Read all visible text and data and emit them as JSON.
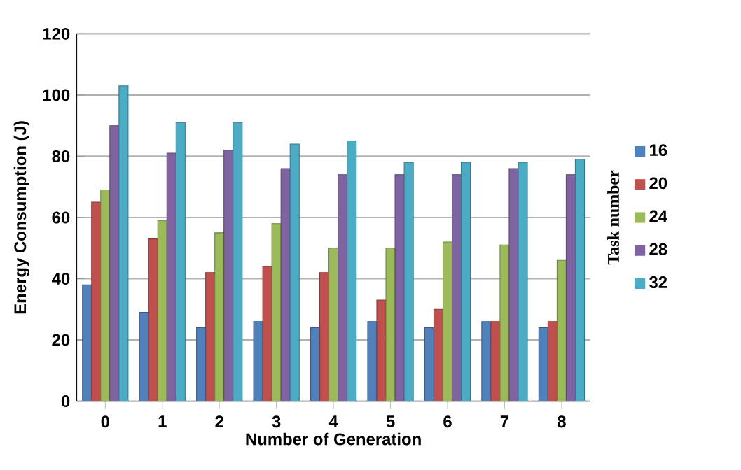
{
  "chart_data": {
    "type": "bar",
    "xlabel": "Number of Generation",
    "ylabel": "Energy Consumption  (J)",
    "legend_title": "Task number",
    "categories": [
      "0",
      "1",
      "2",
      "3",
      "4",
      "5",
      "6",
      "7",
      "8"
    ],
    "series": [
      {
        "name": "16",
        "color": "#4f81bd",
        "values": [
          38,
          29,
          24,
          26,
          24,
          26,
          24,
          26,
          24
        ]
      },
      {
        "name": "20",
        "color": "#c0504d",
        "values": [
          65,
          53,
          42,
          44,
          42,
          33,
          30,
          26,
          26
        ]
      },
      {
        "name": "24",
        "color": "#9bbb59",
        "values": [
          69,
          59,
          55,
          58,
          50,
          50,
          52,
          51,
          46
        ]
      },
      {
        "name": "28",
        "color": "#8064a2",
        "values": [
          90,
          81,
          82,
          76,
          74,
          74,
          74,
          76,
          74
        ]
      },
      {
        "name": "32",
        "color": "#4bacc6",
        "values": [
          103,
          91,
          91,
          84,
          85,
          78,
          78,
          78,
          79
        ]
      }
    ],
    "ylim": [
      0,
      120
    ],
    "yticks": [
      0,
      20,
      40,
      60,
      80,
      100,
      120
    ],
    "grid": "y",
    "legend": "right"
  }
}
